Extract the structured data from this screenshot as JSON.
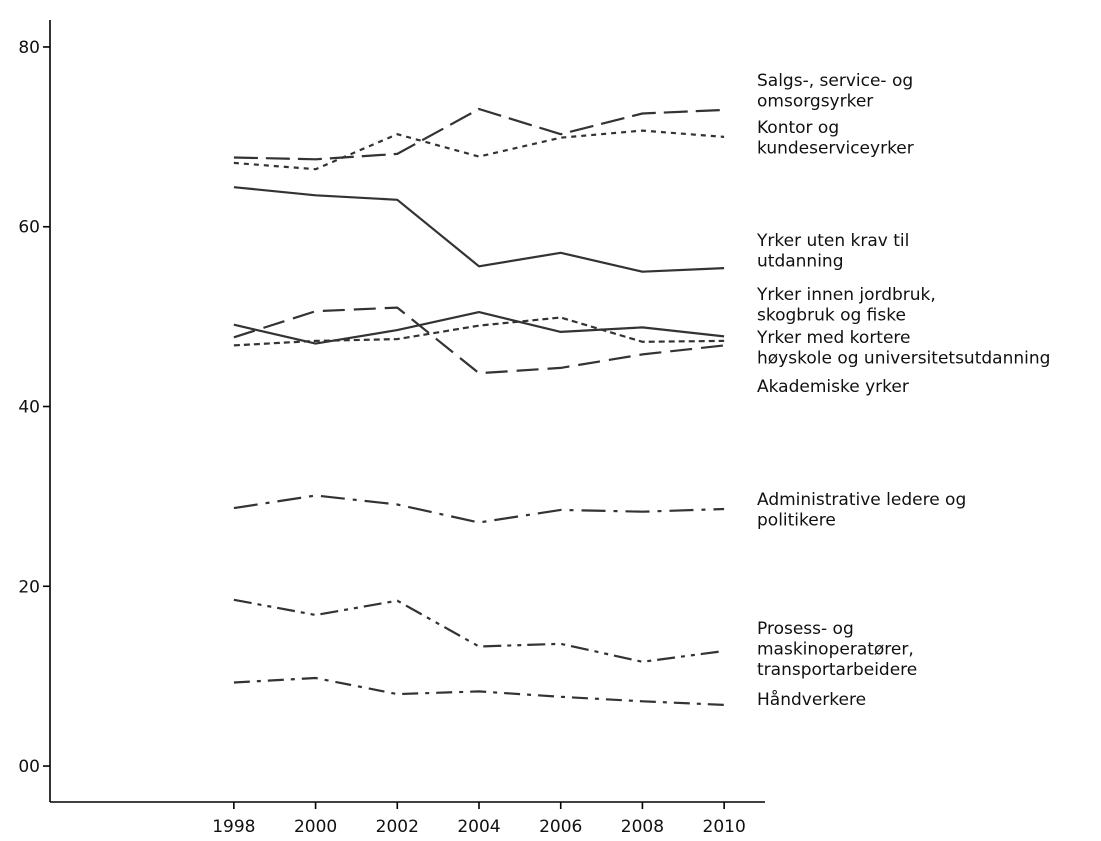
{
  "chart_data": {
    "type": "line",
    "title": "",
    "xlabel": "",
    "ylabel": "",
    "x": [
      1998,
      2000,
      2002,
      2004,
      2006,
      2008,
      2010
    ],
    "x_tick_labels": [
      "1998",
      "2000",
      "2002",
      "2004",
      "2006",
      "2008",
      "2010"
    ],
    "xlim": [
      1993.5,
      2011
    ],
    "y_ticks": [
      0,
      20,
      40,
      60,
      80
    ],
    "y_tick_labels": [
      "00",
      "20",
      "40",
      "60",
      "80"
    ],
    "ylim": [
      -4,
      83
    ],
    "grid": false,
    "legend": "inline labels at right end of lines",
    "series": [
      {
        "name": "Salgs-, service- og omsorgsyrker",
        "label_lines": [
          "Salgs-, service- og",
          "omsorgsyrker"
        ],
        "dash": "long-dash",
        "values": [
          67.7,
          67.5,
          68.1,
          73.1,
          70.3,
          72.6,
          73.0
        ]
      },
      {
        "name": "Kontor og kundeserviceyrker",
        "label_lines": [
          "Kontor og",
          "kundeserviceyrker"
        ],
        "dash": "dotted",
        "values": [
          67.1,
          66.4,
          70.3,
          67.8,
          69.9,
          70.7,
          70.0
        ]
      },
      {
        "name": "Yrker uten krav til utdanning",
        "label_lines": [
          "Yrker uten krav til",
          "utdanning"
        ],
        "dash": "solid",
        "values": [
          64.4,
          63.5,
          63.0,
          55.6,
          57.1,
          55.0,
          55.4
        ]
      },
      {
        "name": "Yrker innen jordbruk, skogbruk og fiske",
        "label_lines": [
          "Yrker innen jordbruk,",
          "skogbruk og fiske"
        ],
        "dash": "long-dash-2",
        "values": [
          47.7,
          50.6,
          51.0,
          43.7,
          44.3,
          45.8,
          46.8
        ]
      },
      {
        "name": "Yrker med kortere høyskole og universitetsutdanning",
        "label_lines": [
          "Yrker med kortere",
          "høyskole og universitetsutdanning"
        ],
        "dash": "short-dash",
        "values": [
          46.8,
          47.3,
          47.5,
          49.0,
          49.9,
          47.2,
          47.3
        ]
      },
      {
        "name": "Akademiske yrker",
        "label_lines": [
          "Akademiske yrker"
        ],
        "dash": "solid-thin",
        "values": [
          49.1,
          47.0,
          48.5,
          50.5,
          48.3,
          48.8,
          47.8
        ]
      },
      {
        "name": "Administrative ledere og politikere",
        "label_lines": [
          "Administrative ledere og",
          "politikere"
        ],
        "dash": "dash-dot",
        "values": [
          28.7,
          30.1,
          29.1,
          27.1,
          28.5,
          28.3,
          28.6
        ]
      },
      {
        "name": "Prosess- og maskinoperatører, transportarbeidere",
        "label_lines": [
          "Prosess- og",
          "maskinoperatører,",
          "transportarbeidere"
        ],
        "dash": "dash-dot-dot",
        "values": [
          18.5,
          16.8,
          18.4,
          13.3,
          13.6,
          11.6,
          12.8
        ]
      },
      {
        "name": "Håndverkere",
        "label_lines": [
          "Håndverkere"
        ],
        "dash": "long-dash-dot",
        "values": [
          9.3,
          9.8,
          8.0,
          8.3,
          7.7,
          7.2,
          6.8
        ]
      }
    ]
  }
}
